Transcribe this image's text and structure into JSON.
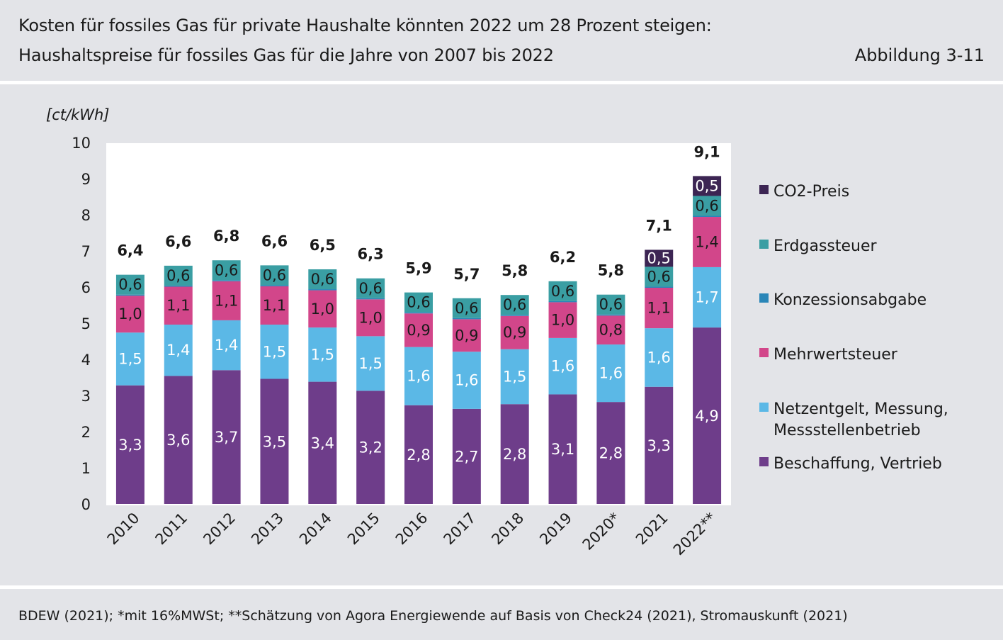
{
  "header": {
    "title": "Kosten für fossiles Gas für private Haushalte könnten 2022 um 28 Prozent steigen:",
    "subtitle": "Haushaltspreise für fossiles Gas für die Jahre von 2007 bis 2022",
    "figure_label": "Abbildung 3-11"
  },
  "footer": {
    "source": "BDEW (2021); *mit 16%MWSt; **Schätzung von Agora Energiewende auf Basis von Check24 (2021), Stromauskunft (2021)"
  },
  "colors": {
    "background": "#e3e4e8",
    "plot_background": "#ffffff",
    "beschaffung": "#6e3d8a",
    "netzentgelt": "#5bb8e6",
    "mehrwertsteuer": "#d2468a",
    "konzession": "#2a86b8",
    "erdgassteuer": "#3a9ea3",
    "co2": "#3c2553"
  },
  "chart_data": {
    "type": "bar",
    "stacked": true,
    "ylabel": "[ct/kWh]",
    "ylim": [
      0,
      10
    ],
    "yticks": [
      "0",
      "1",
      "2",
      "3",
      "4",
      "5",
      "6",
      "7",
      "8",
      "9",
      "10"
    ],
    "grid": false,
    "legend_position": "right",
    "categories": [
      "2010",
      "2011",
      "2012",
      "2013",
      "2014",
      "2015",
      "2016",
      "2017",
      "2018",
      "2019",
      "2020*",
      "2021",
      "2022**"
    ],
    "totals": [
      "6,4",
      "6,6",
      "6,8",
      "6,6",
      "6,5",
      "6,3",
      "5,9",
      "5,7",
      "5,8",
      "6,2",
      "5,8",
      "7,1",
      "9,1"
    ],
    "series": [
      {
        "name": "Beschaffung, Vertrieb",
        "color": "#6e3d8a",
        "label_color": "#ffffff",
        "values": [
          3.3,
          3.56,
          3.72,
          3.48,
          3.4,
          3.15,
          2.75,
          2.65,
          2.78,
          3.05,
          2.84,
          3.26,
          4.9
        ],
        "labels": [
          "3,3",
          "3,6",
          "3,7",
          "3,5",
          "3,4",
          "3,2",
          "2,8",
          "2,7",
          "2,8",
          "3,1",
          "2,8",
          "3,3",
          "4,9"
        ]
      },
      {
        "name": "Netzentgelt, Messung, Messstellenbetrieb",
        "color": "#5bb8e6",
        "label_color": "#ffffff",
        "values": [
          1.46,
          1.42,
          1.38,
          1.5,
          1.5,
          1.51,
          1.61,
          1.58,
          1.52,
          1.56,
          1.59,
          1.62,
          1.67
        ],
        "labels": [
          "1,5",
          "1,4",
          "1,4",
          "1,5",
          "1,5",
          "1,5",
          "1,6",
          "1,6",
          "1,5",
          "1,6",
          "1,6",
          "1,6",
          "1,7"
        ]
      },
      {
        "name": "Mehrwertsteuer",
        "color": "#d2468a",
        "label_color": "#1a1a1a",
        "values": [
          1.02,
          1.05,
          1.08,
          1.06,
          1.03,
          1.02,
          0.93,
          0.9,
          0.92,
          0.99,
          0.8,
          1.12,
          1.39
        ],
        "labels": [
          "1,0",
          "1,1",
          "1,1",
          "1,1",
          "1,0",
          "1,0",
          "0,9",
          "0,9",
          "0,9",
          "1,0",
          "0,8",
          "1,1",
          "1,4"
        ]
      },
      {
        "name": "Konzessionsabgabe",
        "color": "#2a86b8",
        "label_color": "#1a1a1a",
        "values": [
          0.03,
          0.03,
          0.03,
          0.03,
          0.03,
          0.03,
          0.03,
          0.03,
          0.03,
          0.03,
          0.03,
          0.03,
          0.03
        ],
        "labels": [
          "",
          "",
          "",
          "",
          "",
          "",
          "",
          "",
          "",
          "",
          "",
          "",
          ""
        ]
      },
      {
        "name": "Erdgassteuer",
        "color": "#3a9ea3",
        "label_color": "#1a1a1a",
        "values": [
          0.55,
          0.55,
          0.55,
          0.55,
          0.55,
          0.55,
          0.55,
          0.55,
          0.55,
          0.55,
          0.55,
          0.55,
          0.55
        ],
        "labels": [
          "0,6",
          "0,6",
          "0,6",
          "0,6",
          "0,6",
          "0,6",
          "0,6",
          "0,6",
          "0,6",
          "0,6",
          "0,6",
          "0,6",
          "0,6"
        ]
      },
      {
        "name": "CO2-Preis",
        "color": "#3c2553",
        "label_color": "#ffffff",
        "values": [
          0,
          0,
          0,
          0,
          0,
          0,
          0,
          0,
          0,
          0,
          0,
          0.47,
          0.55
        ],
        "labels": [
          "",
          "",
          "",
          "",
          "",
          "",
          "",
          "",
          "",
          "",
          "",
          "0,5",
          "0,5"
        ]
      }
    ],
    "legend_order": [
      "CO2-Preis",
      "Erdgassteuer",
      "Konzessionsabgabe",
      "Mehrwertsteuer",
      "Netzentgelt, Messung, Messstellenbetrieb",
      "Beschaffung, Vertrieb"
    ],
    "legend_lines": {
      "Netzentgelt, Messung, Messstellenbetrieb": [
        "Netzentgelt, Messung,",
        "Messstellenbetrieb"
      ]
    }
  }
}
